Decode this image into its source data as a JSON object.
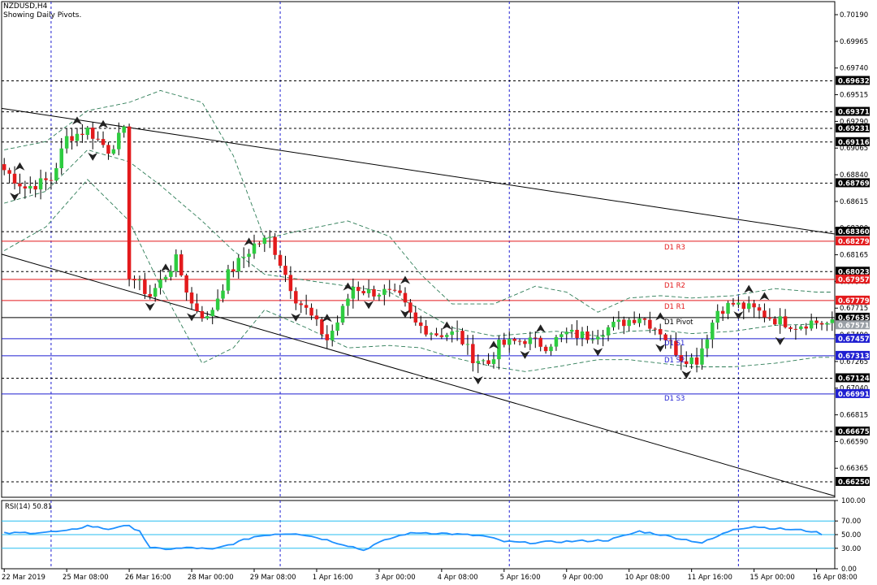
{
  "window": {
    "symbol_timeframe": "NZDUSD,H4",
    "subtitle": "Showing Daily Pivots."
  },
  "rsi_label": "RSI(14) 50.81",
  "colors": {
    "bull": "#2ecc40",
    "bear": "#e31a1c",
    "resistance": "#e31a1c",
    "support": "#1f1fd1",
    "pivot": "#000000",
    "grid": "#1f1fd1",
    "band": "#2e7d57",
    "rsi_line": "#1e90ff",
    "rsi_levels": "#27bdf0"
  },
  "chart_data": [
    {
      "type": "candlestick",
      "title": "NZDUSD,H4",
      "ylim": [
        0.6612,
        0.703
      ],
      "y_ticks": [
        0.7019,
        0.69965,
        0.6974,
        0.69515,
        0.6929,
        0.69065,
        0.6884,
        0.68615,
        0.6839,
        0.68165,
        0.6794,
        0.67715,
        0.6749,
        0.67265,
        0.6704,
        0.66815,
        0.6659,
        0.66365
      ],
      "x_labels": [
        "22 Mar 2019",
        "25 Mar 08:00",
        "26 Mar 16:00",
        "28 Mar 00:00",
        "29 Mar 08:00",
        "1 Apr 16:00",
        "3 Apr 00:00",
        "4 Apr 08:00",
        "5 Apr 16:00",
        "9 Apr 00:00",
        "10 Apr 08:00",
        "11 Apr 16:00",
        "15 Apr 00:00",
        "16 Apr 08:00"
      ],
      "x_label_bars": [
        0,
        12,
        24,
        36,
        48,
        60,
        72,
        84,
        96,
        108,
        120,
        132,
        144,
        156
      ],
      "vertical_grid_bars": [
        9,
        53,
        97,
        141
      ],
      "bar_count": 160,
      "dashed_levels": [
        0.69632,
        0.69371,
        0.69231,
        0.69116,
        0.68769,
        0.6836,
        0.68023,
        0.67124,
        0.66675,
        0.6625
      ],
      "price_badges": [
        {
          "value": 0.69632,
          "text": "0.69632",
          "kind": "plain"
        },
        {
          "value": 0.69371,
          "text": "0.69371",
          "kind": "plain"
        },
        {
          "value": 0.69231,
          "text": "0.69231",
          "kind": "plain"
        },
        {
          "value": 0.69116,
          "text": "0.69116",
          "kind": "plain"
        },
        {
          "value": 0.68769,
          "text": "0.68769",
          "kind": "plain"
        },
        {
          "value": 0.6836,
          "text": "0.68360",
          "kind": "plain"
        },
        {
          "value": 0.68279,
          "text": "0.68279",
          "kind": "resistance"
        },
        {
          "value": 0.68023,
          "text": "0.68023",
          "kind": "plain"
        },
        {
          "value": 0.67957,
          "text": "0.67957",
          "kind": "resistance"
        },
        {
          "value": 0.67779,
          "text": "0.67779",
          "kind": "resistance"
        },
        {
          "value": 0.67635,
          "text": "0.67635",
          "kind": "plain"
        },
        {
          "value": 0.67571,
          "text": "0.67571",
          "kind": "pivot"
        },
        {
          "value": 0.67457,
          "text": "0.67457",
          "kind": "support"
        },
        {
          "value": 0.67313,
          "text": "0.67313",
          "kind": "support"
        },
        {
          "value": 0.67124,
          "text": "0.67124",
          "kind": "plain"
        },
        {
          "value": 0.66991,
          "text": "0.66991",
          "kind": "support"
        },
        {
          "value": 0.66675,
          "text": "0.66675",
          "kind": "plain"
        },
        {
          "value": 0.6625,
          "text": "0.66250",
          "kind": "plain"
        }
      ],
      "pivot_levels": [
        {
          "name": "D1 R3",
          "value": 0.68279,
          "kind": "resistance"
        },
        {
          "name": "D1 R2",
          "value": 0.67957,
          "kind": "resistance"
        },
        {
          "name": "D1 R1",
          "value": 0.67779,
          "kind": "resistance"
        },
        {
          "name": "D1 Pivot",
          "value": 0.67635,
          "kind": "pivot"
        },
        {
          "name": "D1 S1",
          "value": 0.67457,
          "kind": "support"
        },
        {
          "name": "D1 S2",
          "value": 0.67313,
          "kind": "support"
        },
        {
          "name": "D1 S3",
          "value": 0.66991,
          "kind": "support"
        }
      ],
      "channel_upper": {
        "x": [
          0,
          160
        ],
        "y": [
          0.694,
          0.6834
        ]
      },
      "channel_lower": {
        "x": [
          0,
          160
        ],
        "y": [
          0.6817,
          0.6613
        ]
      },
      "close_anchors": [
        [
          0,
          0.6888
        ],
        [
          4,
          0.6873
        ],
        [
          9,
          0.688
        ],
        [
          12,
          0.6915
        ],
        [
          16,
          0.6922
        ],
        [
          20,
          0.6905
        ],
        [
          23,
          0.692
        ],
        [
          24,
          0.68
        ],
        [
          28,
          0.6782
        ],
        [
          33,
          0.6812
        ],
        [
          36,
          0.6775
        ],
        [
          39,
          0.6762
        ],
        [
          43,
          0.68
        ],
        [
          48,
          0.6825
        ],
        [
          51,
          0.683
        ],
        [
          54,
          0.68
        ],
        [
          56,
          0.678
        ],
        [
          58,
          0.677
        ],
        [
          62,
          0.6745
        ],
        [
          64,
          0.676
        ],
        [
          67,
          0.679
        ],
        [
          70,
          0.6785
        ],
        [
          73,
          0.6785
        ],
        [
          76,
          0.678
        ],
        [
          79,
          0.6758
        ],
        [
          83,
          0.675
        ],
        [
          87,
          0.675
        ],
        [
          90,
          0.673
        ],
        [
          93,
          0.6725
        ],
        [
          95,
          0.674
        ],
        [
          100,
          0.6745
        ],
        [
          104,
          0.674
        ],
        [
          108,
          0.675
        ],
        [
          112,
          0.6748
        ],
        [
          116,
          0.6755
        ],
        [
          119,
          0.676
        ],
        [
          122,
          0.6765
        ],
        [
          126,
          0.6752
        ],
        [
          130,
          0.673
        ],
        [
          133,
          0.6728
        ],
        [
          137,
          0.677
        ],
        [
          140,
          0.6775
        ],
        [
          144,
          0.677
        ],
        [
          148,
          0.6762
        ],
        [
          152,
          0.6757
        ],
        [
          155,
          0.676
        ],
        [
          159,
          0.6758
        ]
      ],
      "fractal_highs": [
        3,
        14,
        19,
        31,
        47,
        62,
        66,
        77,
        85,
        94,
        103,
        126,
        143,
        146
      ],
      "fractal_lows": [
        2,
        17,
        28,
        36,
        56,
        70,
        77,
        91,
        100,
        114,
        126,
        131,
        141,
        149
      ],
      "bands_upper_anchors": [
        [
          0,
          0.6905
        ],
        [
          8,
          0.6912
        ],
        [
          16,
          0.6938
        ],
        [
          24,
          0.6945
        ],
        [
          30,
          0.6955
        ],
        [
          38,
          0.6945
        ],
        [
          44,
          0.69
        ],
        [
          50,
          0.683
        ],
        [
          58,
          0.6838
        ],
        [
          66,
          0.6845
        ],
        [
          74,
          0.6832
        ],
        [
          80,
          0.68
        ],
        [
          86,
          0.6775
        ],
        [
          94,
          0.6775
        ],
        [
          102,
          0.679
        ],
        [
          108,
          0.6785
        ],
        [
          114,
          0.6768
        ],
        [
          120,
          0.678
        ],
        [
          126,
          0.6782
        ],
        [
          132,
          0.678
        ],
        [
          140,
          0.6782
        ],
        [
          148,
          0.6788
        ],
        [
          156,
          0.6785
        ]
      ],
      "bands_lower_anchors": [
        [
          0,
          0.682
        ],
        [
          8,
          0.684
        ],
        [
          16,
          0.688
        ],
        [
          24,
          0.6845
        ],
        [
          30,
          0.679
        ],
        [
          38,
          0.6725
        ],
        [
          44,
          0.6738
        ],
        [
          50,
          0.677
        ],
        [
          58,
          0.6755
        ],
        [
          66,
          0.6738
        ],
        [
          74,
          0.674
        ],
        [
          80,
          0.6738
        ],
        [
          86,
          0.673
        ],
        [
          94,
          0.6722
        ],
        [
          100,
          0.6718
        ],
        [
          106,
          0.6722
        ],
        [
          114,
          0.6728
        ],
        [
          120,
          0.6728
        ],
        [
          126,
          0.6725
        ],
        [
          132,
          0.6722
        ],
        [
          140,
          0.6722
        ],
        [
          148,
          0.6725
        ],
        [
          156,
          0.673
        ]
      ],
      "bands_mid_anchors": [
        [
          0,
          0.686
        ],
        [
          8,
          0.687
        ],
        [
          16,
          0.6905
        ],
        [
          24,
          0.6895
        ],
        [
          30,
          0.6875
        ],
        [
          38,
          0.6845
        ],
        [
          44,
          0.682
        ],
        [
          50,
          0.68
        ],
        [
          58,
          0.6795
        ],
        [
          66,
          0.679
        ],
        [
          74,
          0.6785
        ],
        [
          80,
          0.677
        ],
        [
          86,
          0.6755
        ],
        [
          94,
          0.6748
        ],
        [
          100,
          0.675
        ],
        [
          106,
          0.6752
        ],
        [
          114,
          0.6748
        ],
        [
          120,
          0.6752
        ],
        [
          126,
          0.6753
        ],
        [
          132,
          0.675
        ],
        [
          140,
          0.6752
        ],
        [
          148,
          0.6757
        ],
        [
          156,
          0.6758
        ]
      ]
    },
    {
      "type": "line",
      "title": "RSI(14) 50.81",
      "ylim": [
        0,
        100
      ],
      "y_ticks": [
        100.0,
        70.0,
        50.0,
        30.0,
        0.0
      ],
      "levels": [
        70,
        50,
        30
      ],
      "last_value": 50.81,
      "rsi_anchors": [
        [
          0,
          52
        ],
        [
          6,
          53
        ],
        [
          12,
          55
        ],
        [
          16,
          63
        ],
        [
          20,
          58
        ],
        [
          22,
          62
        ],
        [
          24,
          62
        ],
        [
          26,
          56
        ],
        [
          28,
          30
        ],
        [
          32,
          29
        ],
        [
          36,
          31
        ],
        [
          40,
          28
        ],
        [
          44,
          37
        ],
        [
          48,
          47
        ],
        [
          52,
          51
        ],
        [
          56,
          52
        ],
        [
          60,
          46
        ],
        [
          64,
          38
        ],
        [
          67,
          32
        ],
        [
          69,
          27
        ],
        [
          71,
          35
        ],
        [
          74,
          44
        ],
        [
          77,
          51
        ],
        [
          80,
          53
        ],
        [
          84,
          52
        ],
        [
          88,
          50
        ],
        [
          92,
          48
        ],
        [
          96,
          40
        ],
        [
          100,
          38
        ],
        [
          104,
          39
        ],
        [
          108,
          40
        ],
        [
          112,
          41
        ],
        [
          116,
          42
        ],
        [
          119,
          48
        ],
        [
          122,
          55
        ],
        [
          126,
          50
        ],
        [
          130,
          44
        ],
        [
          134,
          38
        ],
        [
          136,
          44
        ],
        [
          140,
          58
        ],
        [
          144,
          62
        ],
        [
          148,
          59
        ],
        [
          152,
          57
        ],
        [
          155,
          55
        ],
        [
          157,
          51
        ]
      ]
    }
  ]
}
